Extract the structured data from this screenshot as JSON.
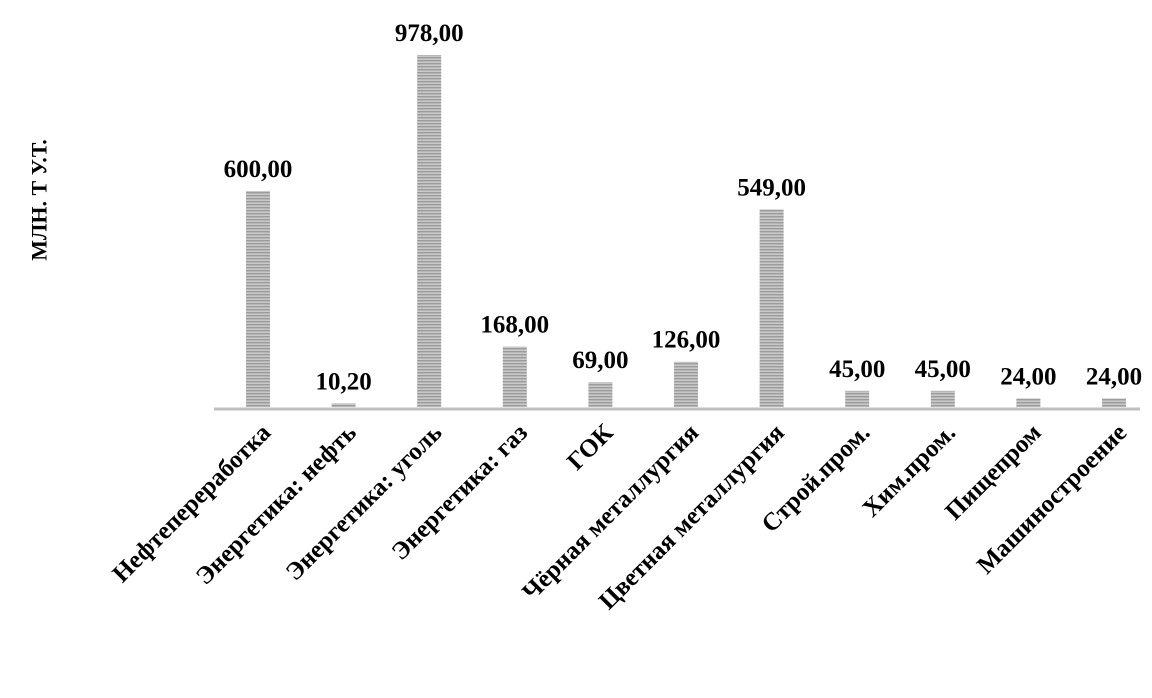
{
  "chart_data": {
    "type": "bar",
    "title": "",
    "xlabel": "",
    "ylabel": "МЛН. Т У.Т.",
    "ylim": [
      0,
      1000
    ],
    "grid": false,
    "legend": "none",
    "categories": [
      "Нефтепереработка",
      "Энергетика: нефть",
      "Энергетика: уголь",
      "Энергетика: газ",
      "ГОК",
      "Чёрная металлургия",
      "Цветная металлургия",
      "Строй.пром.",
      "Хим.пром.",
      "Пищепром",
      "Машиностроение"
    ],
    "values": [
      600.0,
      10.2,
      978.0,
      168.0,
      69.0,
      126.0,
      549.0,
      45.0,
      45.0,
      24.0,
      24.0
    ],
    "data_labels": [
      "600,00",
      "10,20",
      "978,00",
      "168,00",
      "69,00",
      "126,00",
      "549,00",
      "45,00",
      "45,00",
      "24,00",
      "24,00"
    ],
    "bar_color": "#b0b0b0",
    "bar_stripe_color": "#d8d8d8",
    "axis_color": "#bfbfbf"
  }
}
